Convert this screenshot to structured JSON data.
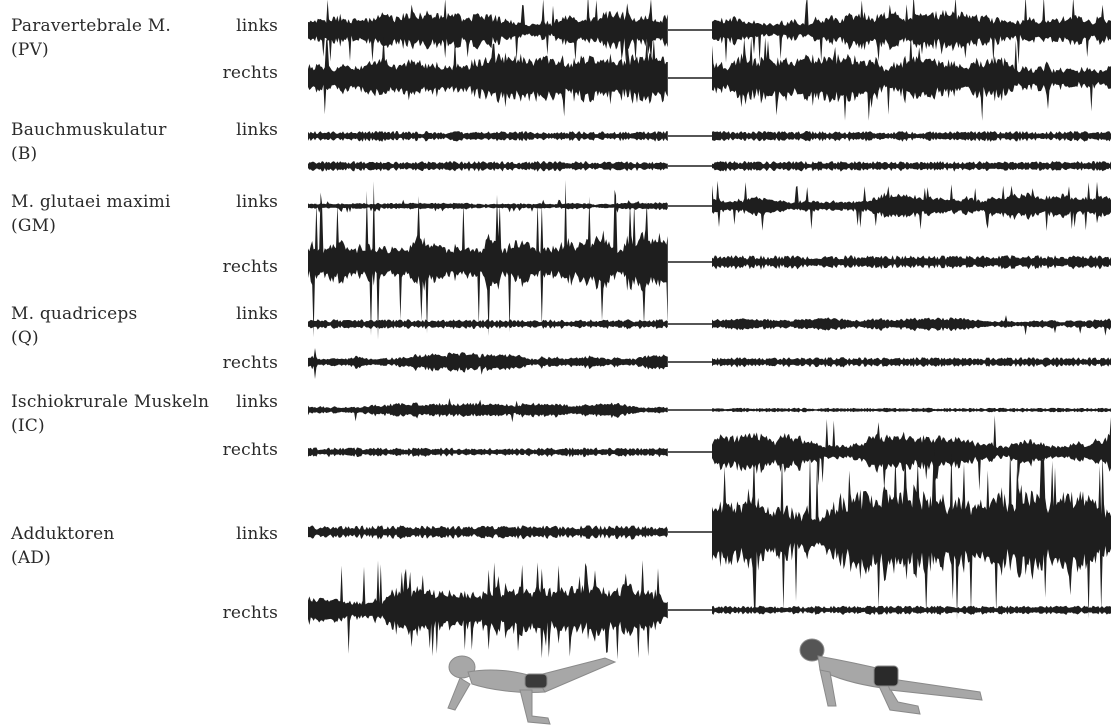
{
  "muscles": [
    {
      "name": "Paravertebrale M.",
      "abbr": "(PV)",
      "channels": [
        {
          "side": "links",
          "seg1": {
            "amp": 0.55,
            "base": 0.08,
            "spikes": 0.25
          },
          "seg2": {
            "amp": 0.55,
            "base": 0.1,
            "spikes": 0.3
          }
        },
        {
          "side": "rechts",
          "seg1": {
            "amp": 0.6,
            "base": 0.1,
            "spikes": 0.25
          },
          "seg2": {
            "amp": 0.6,
            "base": 0.08,
            "spikes": 0.25
          }
        }
      ]
    },
    {
      "name": "Bauchmuskulatur",
      "abbr": "(B)",
      "channels": [
        {
          "side": "links",
          "seg1": {
            "amp": 0.12,
            "base": 0.03,
            "spikes": 0.0
          },
          "seg2": {
            "amp": 0.12,
            "base": 0.03,
            "spikes": 0.0
          }
        },
        {
          "side": "",
          "seg1": {
            "amp": 0.12,
            "base": 0.03,
            "spikes": 0.0
          },
          "seg2": {
            "amp": 0.12,
            "base": 0.03,
            "spikes": 0.0
          }
        }
      ]
    },
    {
      "name": "M. glutaei maximi",
      "abbr": "(GM)",
      "channels": [
        {
          "side": "links",
          "seg1": {
            "amp": 0.2,
            "base": 0.05,
            "spikes": 0.2
          },
          "seg2": {
            "amp": 0.75,
            "base": 0.1,
            "spikes": 0.45
          }
        },
        {
          "side": "rechts",
          "seg1": {
            "amp": 0.8,
            "base": 0.12,
            "spikes": 0.55
          },
          "seg2": {
            "amp": 0.1,
            "base": 0.04,
            "spikes": 0.0
          }
        }
      ]
    },
    {
      "name": "M. quadriceps",
      "abbr": "(Q)",
      "channels": [
        {
          "side": "links",
          "seg1": {
            "amp": 0.14,
            "base": 0.04,
            "spikes": 0.0
          },
          "seg2": {
            "amp": 0.25,
            "base": 0.05,
            "spikes": 0.05
          }
        },
        {
          "side": "rechts",
          "seg1": {
            "amp": 0.3,
            "base": 0.06,
            "spikes": 0.05
          },
          "seg2": {
            "amp": 0.12,
            "base": 0.03,
            "spikes": 0.0
          }
        }
      ]
    },
    {
      "name": "Ischiokrurale Muskeln",
      "abbr": "(IC)",
      "channels": [
        {
          "side": "links",
          "seg1": {
            "amp": 0.25,
            "base": 0.05,
            "spikes": 0.1
          },
          "seg2": {
            "amp": 0.05,
            "base": 0.02,
            "spikes": 0.0
          }
        },
        {
          "side": "rechts",
          "seg1": {
            "amp": 0.07,
            "base": 0.02,
            "spikes": 0.0
          },
          "seg2": {
            "amp": 0.4,
            "base": 0.04,
            "spikes": 0.15
          }
        }
      ]
    },
    {
      "name": "Adduktoren",
      "abbr": "(AD)",
      "channels": [
        {
          "side": "links",
          "seg1": {
            "amp": 0.1,
            "base": 0.03,
            "spikes": 0.0
          },
          "seg2": {
            "amp": 0.9,
            "base": 0.12,
            "spikes": 0.55
          }
        },
        {
          "side": "rechts",
          "seg1": {
            "amp": 0.75,
            "base": 0.12,
            "spikes": 0.5
          },
          "seg2": {
            "amp": 0.1,
            "base": 0.03,
            "spikes": 0.0
          }
        }
      ]
    }
  ],
  "colors": {
    "ink": "#1e1e1e",
    "label": "#2a2a2a",
    "figure": "#a7a7a7"
  },
  "figures": [
    {
      "name": "figure-left-leg-raised",
      "icon": "person-quadruped-icon"
    },
    {
      "name": "figure-right-leg-raised",
      "icon": "person-quadruped-icon"
    }
  ]
}
